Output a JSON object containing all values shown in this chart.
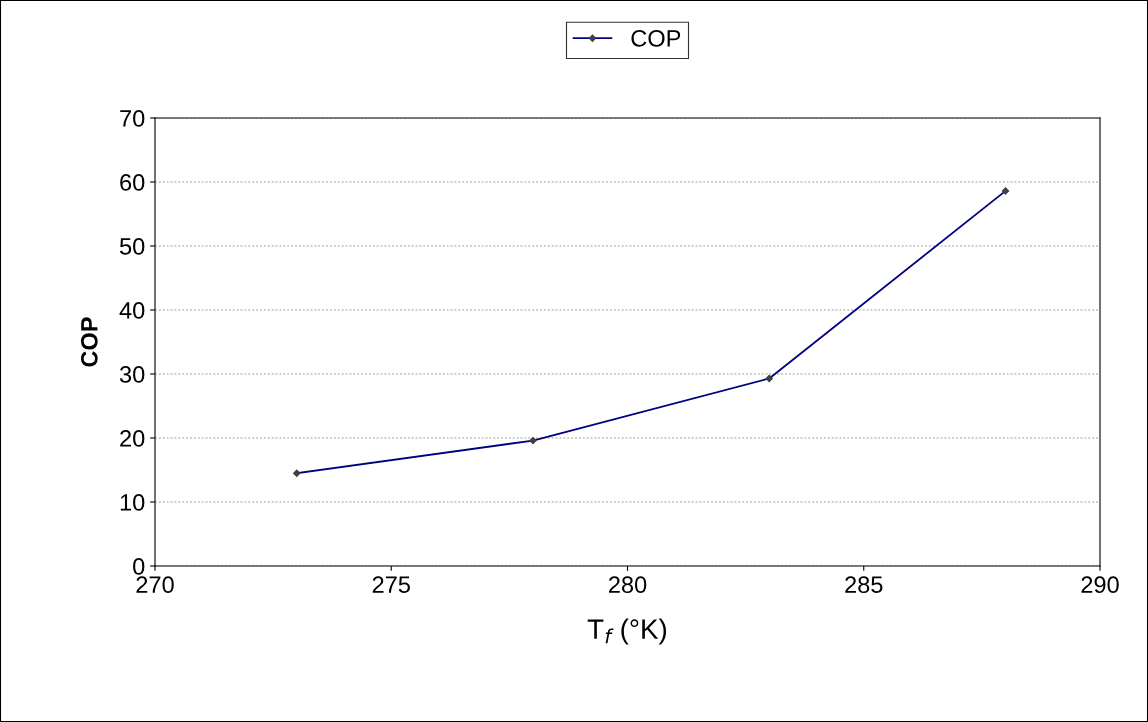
{
  "chart_data": {
    "type": "line",
    "xlabel": "T$_{f}$ (°K)",
    "ylabel": "COP",
    "x": [
      273,
      278,
      283,
      288
    ],
    "series": [
      {
        "name": "COP",
        "color": "#000080",
        "values": [
          14.5,
          19.6,
          29.3,
          58.6
        ]
      }
    ],
    "xlim": [
      270,
      290
    ],
    "xticks": [
      270,
      275,
      280,
      285,
      290
    ],
    "ylim": [
      0,
      70
    ],
    "yticks": [
      0,
      10,
      20,
      30,
      40,
      50,
      60,
      70
    ],
    "grid": "y",
    "legend": "top",
    "marker": "diamond",
    "line_style": "solid"
  }
}
